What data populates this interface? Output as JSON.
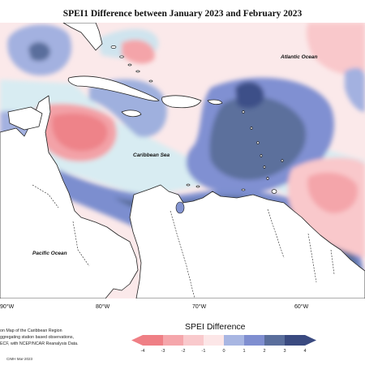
{
  "title": "SPEI1 Difference between January 2023 and February 2023",
  "map": {
    "region": "Caribbean",
    "ocean_labels": [
      {
        "text": "Atlantic Ocean"
      },
      {
        "text": "Caribbean Sea"
      },
      {
        "text": "Pacific Ocean"
      }
    ],
    "longitude_ticks": [
      "90°W",
      "80°W",
      "70°W",
      "60°W"
    ]
  },
  "legend": {
    "title": "SPEI Difference",
    "tick_labels": [
      "-4",
      "-3",
      "-2",
      "-1",
      "0",
      "1",
      "2",
      "3",
      "4"
    ],
    "colors": [
      "#ef7f85",
      "#f5a6ab",
      "#f9c9cc",
      "#fce6e7",
      "#d3e7ee",
      "#a8b6e2",
      "#7f8ed0",
      "#5a6e9c",
      "#3a4a80"
    ]
  },
  "credit_lines": [
    "on Map of the Caribbean Region",
    "ggregating station based observations,",
    "ECF, with NCEP/NCAR Reanalysis Data."
  ],
  "stamp": "CIMH Mar-2023"
}
